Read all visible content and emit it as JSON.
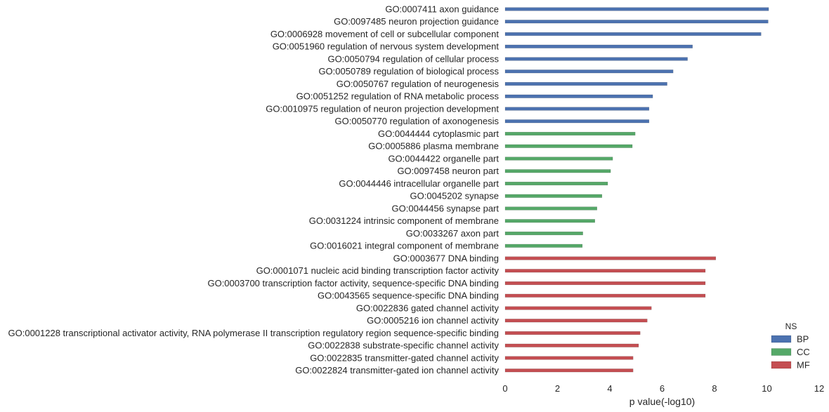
{
  "chart_data": {
    "type": "bar",
    "orientation": "horizontal",
    "xlabel": "p value(-log10)",
    "xlim": [
      0,
      12
    ],
    "xticks": [
      0,
      2,
      4,
      6,
      8,
      10,
      12
    ],
    "grid": false,
    "legend": {
      "title": "NS",
      "placement": "bottom-right",
      "entries": [
        {
          "name": "BP",
          "color": "#4c72b0"
        },
        {
          "name": "CC",
          "color": "#55a868"
        },
        {
          "name": "MF",
          "color": "#c44e52"
        }
      ]
    },
    "series": [
      {
        "name": "BP",
        "color": "#4c72b0"
      },
      {
        "name": "CC",
        "color": "#55a868"
      },
      {
        "name": "MF",
        "color": "#c44e52"
      }
    ],
    "bars": [
      {
        "label": "GO:0007411 axon guidance",
        "ns": "BP",
        "value": 10.07
      },
      {
        "label": "GO:0097485 neuron projection guidance",
        "ns": "BP",
        "value": 10.05
      },
      {
        "label": "GO:0006928 movement of cell or subcellular component",
        "ns": "BP",
        "value": 9.78
      },
      {
        "label": "GO:0051960 regulation of nervous system development",
        "ns": "BP",
        "value": 7.16
      },
      {
        "label": "GO:0050794 regulation of cellular process",
        "ns": "BP",
        "value": 6.97
      },
      {
        "label": "GO:0050789 regulation of biological process",
        "ns": "BP",
        "value": 6.42
      },
      {
        "label": "GO:0050767 regulation of neurogenesis",
        "ns": "BP",
        "value": 6.19
      },
      {
        "label": "GO:0051252 regulation of RNA metabolic process",
        "ns": "BP",
        "value": 5.64
      },
      {
        "label": "GO:0010975 regulation of neuron projection development",
        "ns": "BP",
        "value": 5.5
      },
      {
        "label": "GO:0050770 regulation of axonogenesis",
        "ns": "BP",
        "value": 5.5
      },
      {
        "label": "GO:0044444 cytoplasmic part",
        "ns": "CC",
        "value": 4.97
      },
      {
        "label": "GO:0005886 plasma membrane",
        "ns": "CC",
        "value": 4.86
      },
      {
        "label": "GO:0044422 organelle part",
        "ns": "CC",
        "value": 4.11
      },
      {
        "label": "GO:0097458 neuron part",
        "ns": "CC",
        "value": 4.03
      },
      {
        "label": "GO:0044446 intracellular organelle part",
        "ns": "CC",
        "value": 3.92
      },
      {
        "label": "GO:0045202 synapse",
        "ns": "CC",
        "value": 3.7
      },
      {
        "label": "GO:0044456 synapse part",
        "ns": "CC",
        "value": 3.51
      },
      {
        "label": "GO:0031224 intrinsic component of membrane",
        "ns": "CC",
        "value": 3.43
      },
      {
        "label": "GO:0033267 axon part",
        "ns": "CC",
        "value": 2.97
      },
      {
        "label": "GO:0016021 integral component of membrane",
        "ns": "CC",
        "value": 2.95
      },
      {
        "label": "GO:0003677 DNA binding",
        "ns": "MF",
        "value": 8.05
      },
      {
        "label": "GO:0001071 nucleic acid binding transcription factor activity",
        "ns": "MF",
        "value": 7.65
      },
      {
        "label": "GO:0003700 transcription factor activity, sequence-specific DNA binding",
        "ns": "MF",
        "value": 7.65
      },
      {
        "label": "GO:0043565 sequence-specific DNA binding",
        "ns": "MF",
        "value": 7.65
      },
      {
        "label": "GO:0022836 gated channel activity",
        "ns": "MF",
        "value": 5.59
      },
      {
        "label": "GO:0005216 ion channel activity",
        "ns": "MF",
        "value": 5.43
      },
      {
        "label": "GO:0001228 transcriptional activator activity, RNA polymerase II transcription regulatory region sequence-specific binding",
        "ns": "MF",
        "value": 5.16
      },
      {
        "label": "GO:0022838 substrate-specific channel activity",
        "ns": "MF",
        "value": 5.1
      },
      {
        "label": "GO:0022835 transmitter-gated channel activity",
        "ns": "MF",
        "value": 4.89
      },
      {
        "label": "GO:0022824 transmitter-gated ion channel activity",
        "ns": "MF",
        "value": 4.89
      }
    ]
  }
}
